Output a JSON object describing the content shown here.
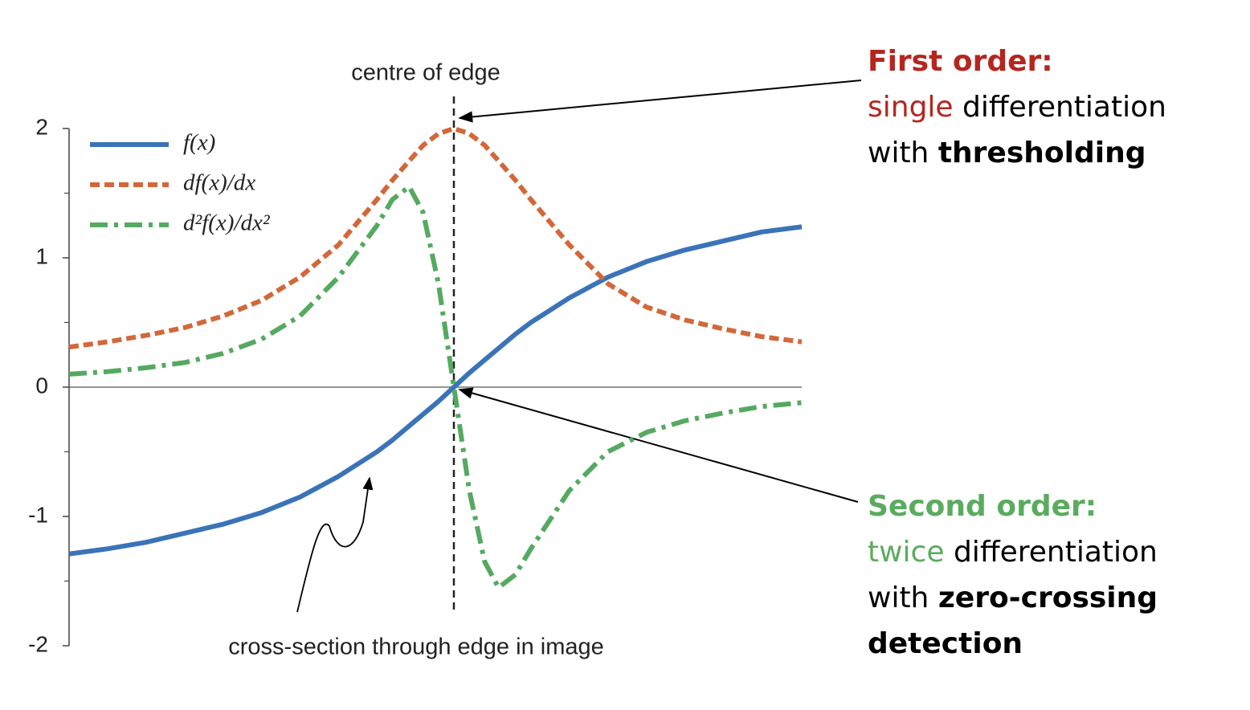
{
  "chart_data": {
    "type": "line",
    "x": [
      -2.5,
      -2.25,
      -2,
      -1.75,
      -1.5,
      -1.25,
      -1,
      -0.75,
      -0.5,
      -0.4,
      -0.29,
      -0.2,
      -0.1,
      0,
      0.1,
      0.2,
      0.29,
      0.4,
      0.5,
      0.75,
      1,
      1.25,
      1.5,
      1.75,
      2,
      2.26
    ],
    "series": [
      {
        "name": "f(x)",
        "color": "#3a73b8",
        "style": "solid",
        "values": [
          -1.29,
          -1.25,
          -1.2,
          -1.13,
          -1.06,
          -0.97,
          -0.85,
          -0.69,
          -0.5,
          -0.41,
          -0.3,
          -0.21,
          -0.11,
          0,
          0.11,
          0.21,
          0.3,
          0.41,
          0.5,
          0.69,
          0.85,
          0.97,
          1.06,
          1.13,
          1.2,
          1.24
        ]
      },
      {
        "name": "df(x)/dx",
        "color": "#d2683a",
        "style": "dashed",
        "values": [
          0.31,
          0.35,
          0.4,
          0.46,
          0.55,
          0.67,
          0.85,
          1.1,
          1.45,
          1.6,
          1.75,
          1.87,
          1.96,
          2,
          1.96,
          1.87,
          1.75,
          1.6,
          1.45,
          1.1,
          0.8,
          0.62,
          0.52,
          0.45,
          0.39,
          0.35
        ]
      },
      {
        "name": "d²f(x)/dx²",
        "color": "#55a960",
        "style": "dashdot",
        "values": [
          0.1,
          0.12,
          0.15,
          0.19,
          0.26,
          0.37,
          0.55,
          0.85,
          1.25,
          1.45,
          1.55,
          1.35,
          0.8,
          0,
          -0.8,
          -1.35,
          -1.55,
          -1.45,
          -1.25,
          -0.8,
          -0.5,
          -0.35,
          -0.26,
          -0.2,
          -0.15,
          -0.12
        ]
      }
    ],
    "xlim": [
      -2.5,
      2.26
    ],
    "ylim": [
      -2,
      2
    ],
    "yticks": [
      -2,
      -1,
      0,
      1,
      2
    ],
    "yminorticks": [
      -1.5,
      -0.5,
      0.5,
      1.5
    ],
    "legend": "top-left",
    "annotations": {
      "centre": {
        "text": "centre of edge",
        "x": 0
      },
      "cross_section": "cross-section through edge in image",
      "first_order": {
        "heading": "First order:",
        "highlight": "single",
        "line1_rest": " differentiation",
        "line2_start": "with ",
        "line2_bold": "thresholding",
        "color": "#b5261e"
      },
      "second_order": {
        "heading": "Second order:",
        "highlight": "twice",
        "line1_rest": " differentiation",
        "line2_start": "with ",
        "line2_bold": "zero-crossing",
        "line3_bold": "detection",
        "color": "#5aab5f"
      }
    }
  }
}
